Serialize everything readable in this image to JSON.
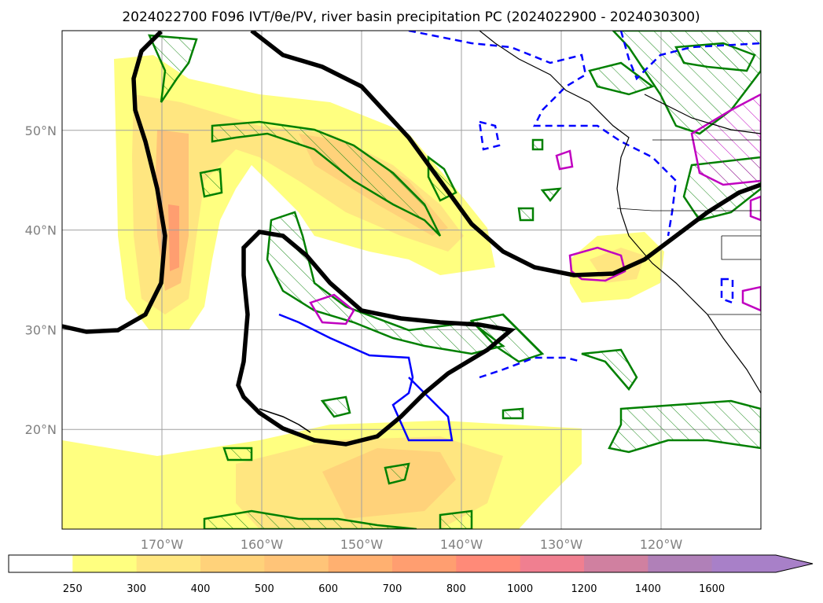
{
  "title": "2024022700 F096 IVT/θe/PV, river basin precipitation PC (2024022900 - 2024030300)",
  "map": {
    "lon_range": [
      -180,
      -110
    ],
    "lat_range": [
      10,
      60
    ],
    "lat_ticks": [
      {
        "value": 20,
        "label": "20°N"
      },
      {
        "value": 30,
        "label": "30°N"
      },
      {
        "value": 40,
        "label": "40°N"
      },
      {
        "value": 50,
        "label": "50°N"
      }
    ],
    "lon_ticks": [
      {
        "value": -170,
        "label": "170°W"
      },
      {
        "value": -160,
        "label": "160°W"
      },
      {
        "value": -150,
        "label": "150°W"
      },
      {
        "value": -140,
        "label": "140°W"
      },
      {
        "value": -130,
        "label": "130°W"
      },
      {
        "value": -120,
        "label": "120°W"
      }
    ],
    "grid": true
  },
  "colorbar": {
    "levels": [
      "250",
      "300",
      "400",
      "500",
      "600",
      "700",
      "800",
      "1000",
      "1200",
      "1400",
      "1600"
    ],
    "colors": [
      "#ffffff",
      "#ffff80",
      "#ffe680",
      "#ffd27a",
      "#ffc478",
      "#ffb070",
      "#ff9e70",
      "#ff8a78",
      "#f07f90",
      "#d080a0",
      "#b080b8",
      "#a880c8"
    ],
    "extend": "max"
  },
  "colors": {
    "pv_contour": "#008000",
    "theta_contour": "#0000ff",
    "purple_contour": "#c000c0",
    "thick_contour": "#000000",
    "coast": "#000000"
  }
}
